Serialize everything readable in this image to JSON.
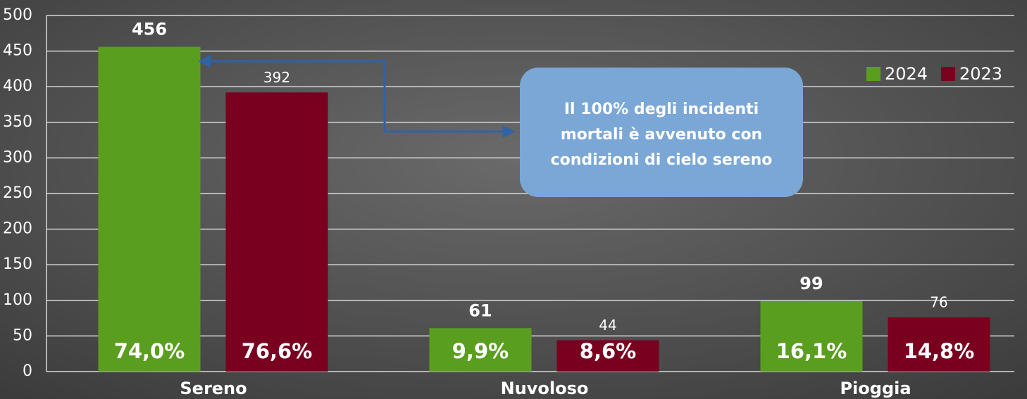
{
  "chart_data": {
    "type": "bar",
    "categories": [
      "Sereno",
      "Nuvoloso",
      "Pioggia"
    ],
    "series": [
      {
        "name": "2024",
        "color": "#5a9e1f",
        "values": [
          456,
          61,
          99
        ],
        "percent_labels": [
          "74,0%",
          "9,9%",
          "16,1%"
        ]
      },
      {
        "name": "2023",
        "color": "#7a0020",
        "values": [
          392,
          44,
          76
        ],
        "percent_labels": [
          "76,6%",
          "8,6%",
          "14,8%"
        ]
      }
    ],
    "ylim": [
      0,
      500
    ],
    "yticks": [
      0,
      50,
      100,
      150,
      200,
      250,
      300,
      350,
      400,
      450,
      500
    ],
    "grid": true,
    "legend": "top-right",
    "annotation": [
      "Il 100% degli incidenti",
      "mortali è avvenuto con",
      "condizioni di cielo sereno"
    ]
  }
}
